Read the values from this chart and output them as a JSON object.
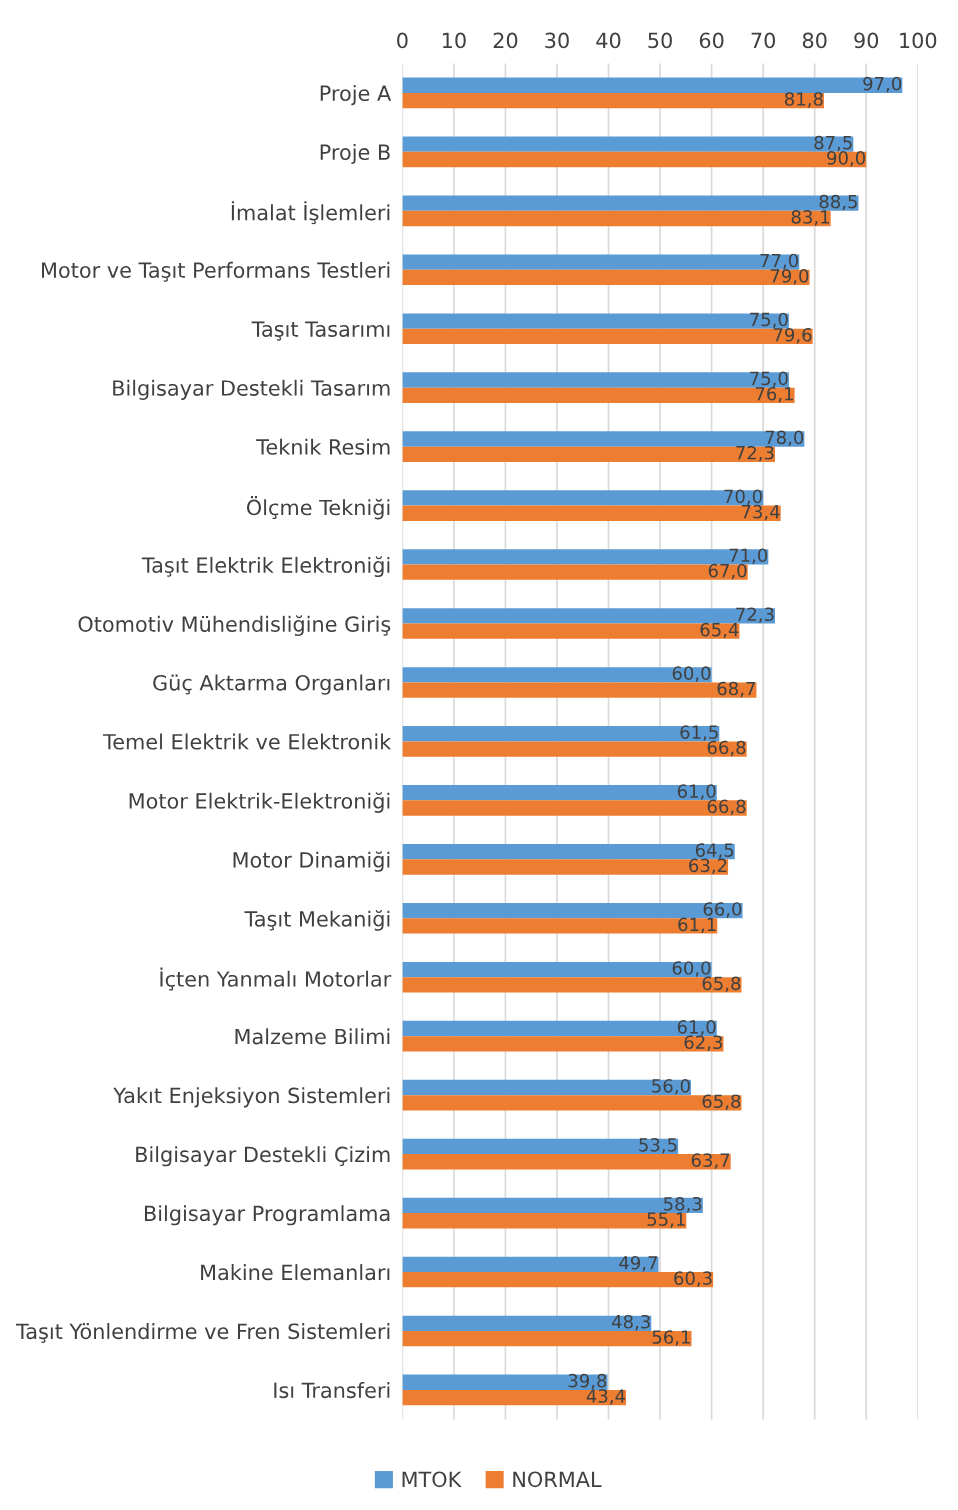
{
  "chart_data": {
    "type": "bar",
    "orientation": "horizontal",
    "categories": [
      "Proje A",
      "Proje B",
      "İmalat İşlemleri",
      "Motor ve Taşıt Performans Testleri",
      "Taşıt Tasarımı",
      "Bilgisayar Destekli Tasarım",
      "Teknik Resim",
      "Ölçme Tekniği",
      "Taşıt Elektrik Elektroniği",
      "Otomotiv Mühendisliğine Giriş",
      "Güç Aktarma Organları",
      "Temel Elektrik ve Elektronik",
      "Motor Elektrik-Elektroniği",
      "Motor Dinamiği",
      "Taşıt Mekaniği",
      "İçten Yanmalı Motorlar",
      "Malzeme Bilimi",
      "Yakıt Enjeksiyon Sistemleri",
      "Bilgisayar Destekli Çizim",
      "Bilgisayar Programlama",
      "Makine Elemanları",
      "Taşıt Yönlendirme ve Fren Sistemleri",
      "Isı Transferi"
    ],
    "series": [
      {
        "name": "MTOK",
        "color": "#5b9bd5",
        "values": [
          97.0,
          87.5,
          88.5,
          77.0,
          75.0,
          75.0,
          78.0,
          70.0,
          71.0,
          72.3,
          60.0,
          61.5,
          61.0,
          64.5,
          66.0,
          60.0,
          61.0,
          56.0,
          53.5,
          58.3,
          49.7,
          48.3,
          39.8
        ],
        "value_labels": [
          "97,0",
          "87,5",
          "88,5",
          "77,0",
          "75,0",
          "75,0",
          "78,0",
          "70,0",
          "71,0",
          "72,3",
          "60,0",
          "61,5",
          "61,0",
          "64,5",
          "66,0",
          "60,0",
          "61,0",
          "56,0",
          "53,5",
          "58,3",
          "49,7",
          "48,3",
          "39,8"
        ]
      },
      {
        "name": "NORMAL",
        "color": "#ed7d31",
        "values": [
          81.8,
          90.0,
          83.1,
          79.0,
          79.6,
          76.1,
          72.3,
          73.4,
          67.0,
          65.4,
          68.7,
          66.8,
          66.8,
          63.2,
          61.1,
          65.8,
          62.3,
          65.8,
          63.7,
          55.1,
          60.3,
          56.1,
          43.4
        ],
        "value_labels": [
          "81,8",
          "90,0",
          "83,1",
          "79,0",
          "79,6",
          "76,1",
          "72,3",
          "73,4",
          "67,0",
          "65,4",
          "68,7",
          "66,8",
          "66,8",
          "63,2",
          "61,1",
          "65,8",
          "62,3",
          "65,8",
          "63,7",
          "55,1",
          "60,3",
          "56,1",
          "43,4"
        ]
      }
    ],
    "xlim": [
      0,
      100
    ],
    "xticks": [
      0,
      10,
      20,
      30,
      40,
      50,
      60,
      70,
      80,
      90,
      100
    ],
    "grid": "x",
    "legend": "bottom"
  }
}
